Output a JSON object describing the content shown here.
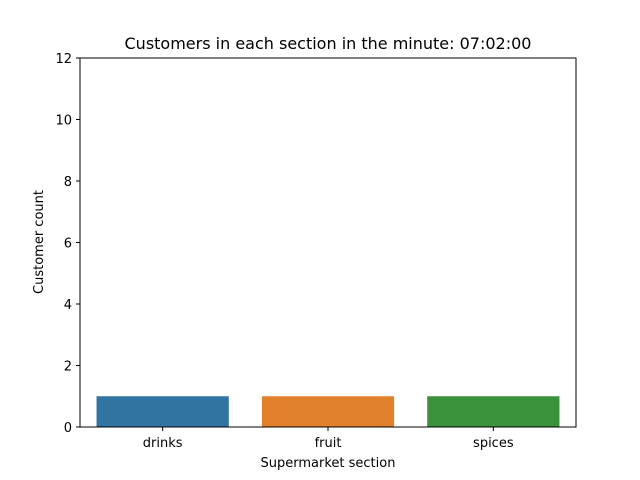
{
  "chart_data": {
    "type": "bar",
    "title": "Customers in each section in the minute: 07:02:00",
    "xlabel": "Supermarket section",
    "ylabel": "Customer count",
    "categories": [
      "drinks",
      "fruit",
      "spices"
    ],
    "values": [
      1,
      1,
      1
    ],
    "bar_colors": [
      "#3274a1",
      "#e1812c",
      "#3a923a"
    ],
    "ylim": [
      0,
      12
    ],
    "yticks": [
      0,
      2,
      4,
      6,
      8,
      10,
      12
    ],
    "grid": false,
    "legend": "none"
  }
}
